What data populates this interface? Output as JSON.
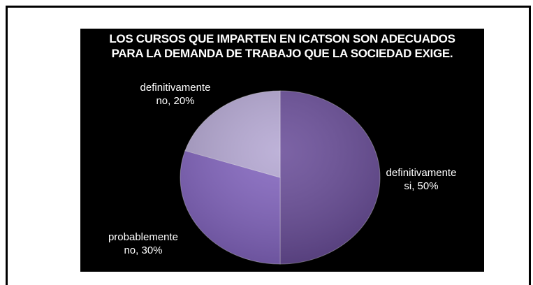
{
  "chart_data": {
    "type": "pie",
    "title_lines": [
      "LOS CURSOS QUE IMPARTEN EN ICATSON SON ADECUADOS",
      "PARA LA DEMANDA DE TRABAJO QUE LA SOCIEDAD EXIGE."
    ],
    "slices": [
      {
        "label_lines": [
          "definitivamente",
          "si, 50%"
        ],
        "value": 50,
        "color": "#6a4e99"
      },
      {
        "label_lines": [
          "probablemente",
          "no, 30%"
        ],
        "value": 30,
        "color": "#8466c0"
      },
      {
        "label_lines": [
          "definitivamente",
          "no, 20%"
        ],
        "value": 20,
        "color": "#b5a8d3"
      }
    ],
    "start_angle_deg": 0,
    "direction": "clockwise",
    "background": "#000000"
  }
}
